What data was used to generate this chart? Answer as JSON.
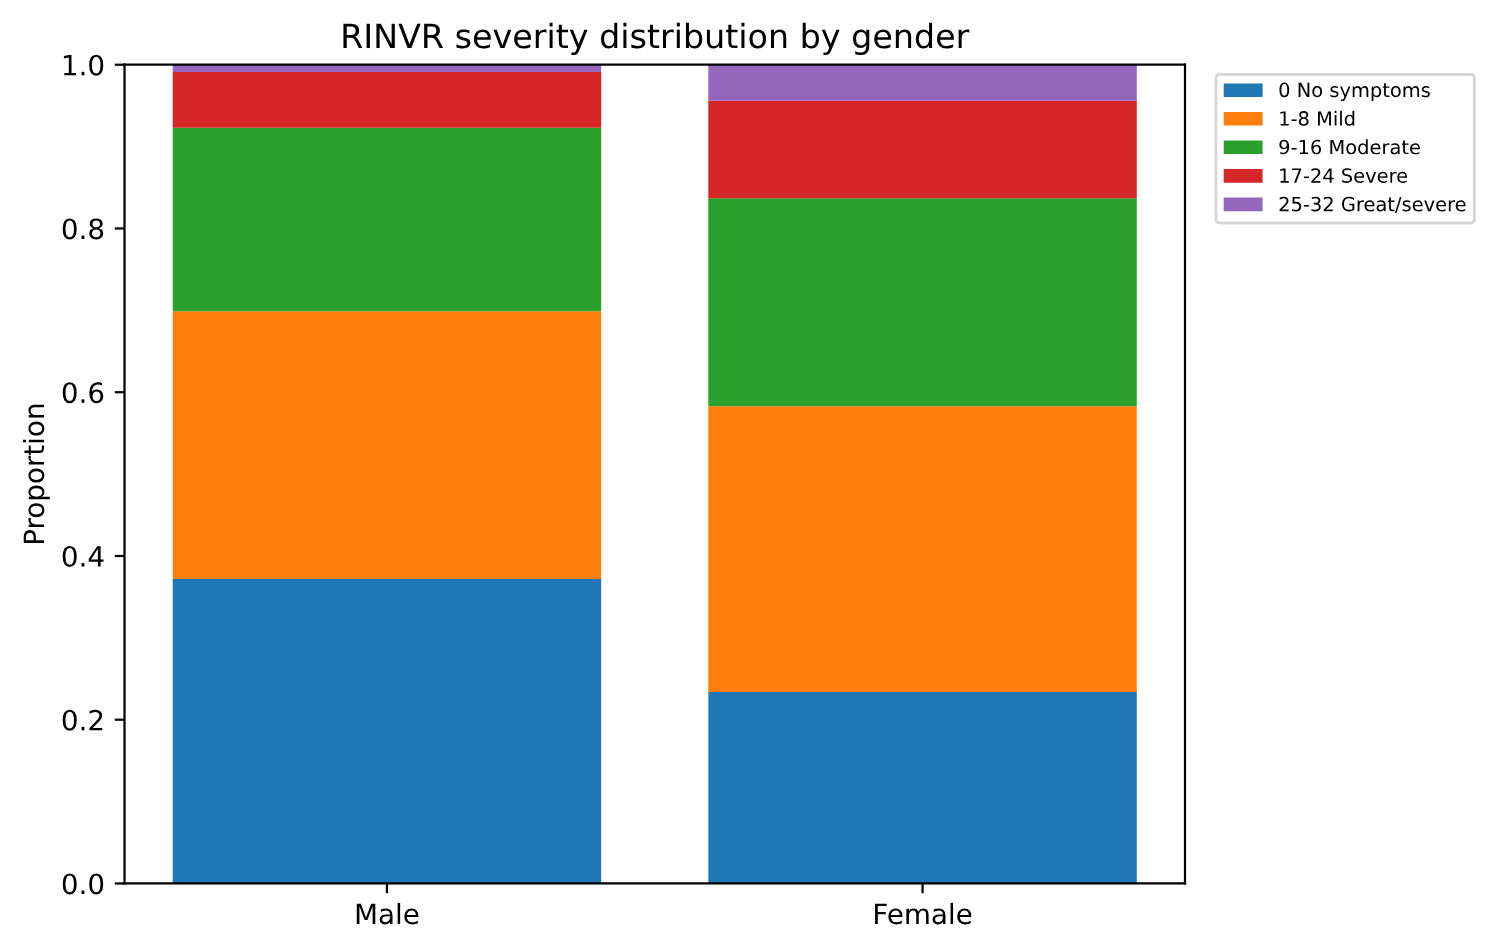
{
  "chart_data": {
    "type": "bar",
    "title": "RINVR severity distribution by gender",
    "ylabel": "Proportion",
    "categories": [
      "Male",
      "Female"
    ],
    "stacked": true,
    "series": [
      {
        "name": "0 No symptoms",
        "color": "#1f77b4",
        "values": [
          0.372,
          0.234
        ]
      },
      {
        "name": "1-8 Mild",
        "color": "#ff7f0e",
        "values": [
          0.327,
          0.349
        ]
      },
      {
        "name": "9-16 Moderate",
        "color": "#2ca02c",
        "values": [
          0.224,
          0.254
        ]
      },
      {
        "name": "17-24 Severe",
        "color": "#d62728",
        "values": [
          0.068,
          0.119
        ]
      },
      {
        "name": "25-32 Great/severe",
        "color": "#9467bd",
        "values": [
          0.009,
          0.044
        ]
      }
    ],
    "ylim": [
      0,
      1
    ],
    "yticks": [
      {
        "value": 0,
        "label": "0.0"
      },
      0.2,
      0.4,
      0.6,
      0.8,
      {
        "value": 1,
        "label": "1.0"
      }
    ],
    "grid": false,
    "legend": "top right"
  }
}
